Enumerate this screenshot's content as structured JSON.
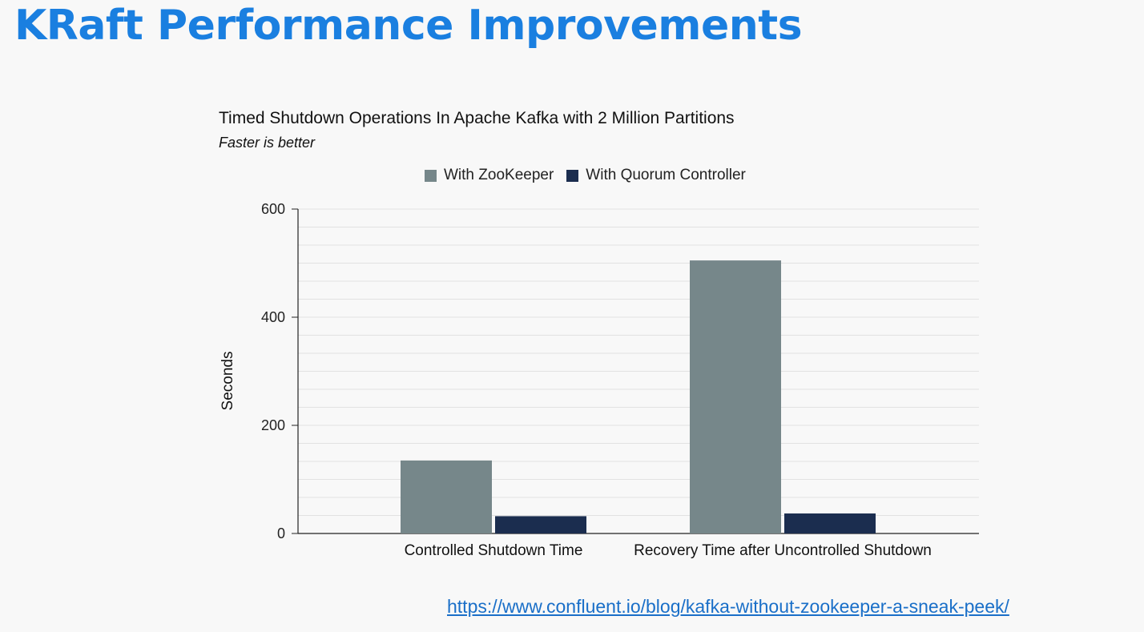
{
  "slide": {
    "title": "KRaft Performance Improvements",
    "source_link": "https://www.confluent.io/blog/kafka-without-zookeeper-a-sneak-peek/"
  },
  "chart_data": {
    "type": "bar",
    "title": "Timed Shutdown Operations In Apache Kafka with 2 Million Partitions",
    "subtitle": "Faster is better",
    "xlabel": "",
    "ylabel": "Seconds",
    "categories": [
      "Controlled Shutdown Time",
      "Recovery Time after Uncontrolled Shutdown"
    ],
    "series": [
      {
        "name": "With ZooKeeper",
        "color": "#76878a",
        "values": [
          135,
          505
        ]
      },
      {
        "name": "With Quorum Controller",
        "color": "#1b2d4f",
        "values": [
          32,
          37
        ]
      }
    ],
    "ylim": [
      0,
      600
    ],
    "yticks": [
      0,
      200,
      400,
      600
    ],
    "grid": true,
    "legend_position": "top"
  }
}
